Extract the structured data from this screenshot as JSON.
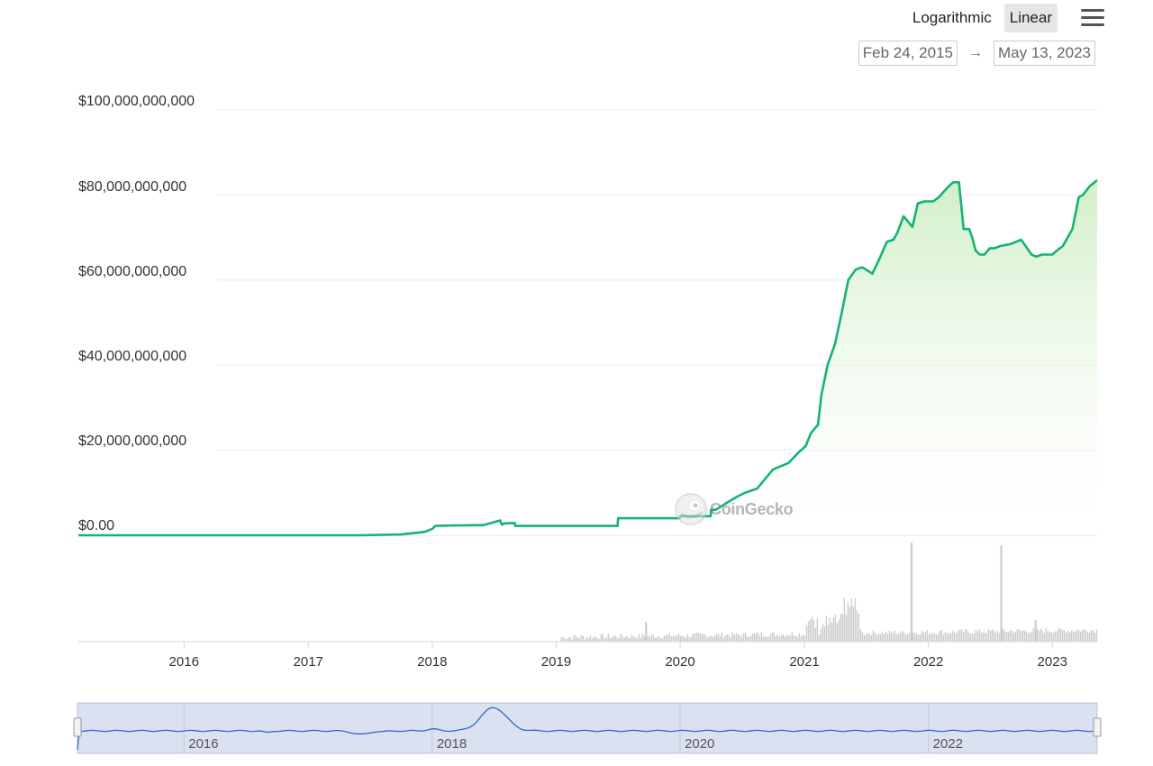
{
  "toolbar": {
    "log_label": "Logarithmic",
    "linear_label": "Linear",
    "active": "Linear"
  },
  "range": {
    "from": "Feb 24, 2015",
    "to": "May 13, 2023"
  },
  "watermark": "CoinGecko",
  "colors": {
    "line": "#15b374",
    "area_top": "#d6efcf",
    "volume": "#cccccc",
    "navigator_line": "#3366cc",
    "navigator_bg": "#dbe1f0"
  },
  "chart_data": {
    "type": "area",
    "title": "",
    "xlabel": "",
    "ylabel": "",
    "ylim": [
      0,
      100000000000
    ],
    "xlim": [
      "2015-02-24",
      "2023-05-13"
    ],
    "y_ticks": [
      "$0.00",
      "$20,000,000,000",
      "$40,000,000,000",
      "$60,000,000,000",
      "$80,000,000,000",
      "$100,000,000,000"
    ],
    "y_tick_values": [
      0,
      20000000000,
      40000000000,
      60000000000,
      80000000000,
      100000000000
    ],
    "x_ticks": [
      "2016",
      "2017",
      "2018",
      "2019",
      "2020",
      "2021",
      "2022",
      "2023"
    ],
    "x_tick_dates": [
      "2016-01-01",
      "2017-01-01",
      "2018-01-01",
      "2019-01-01",
      "2020-01-01",
      "2021-01-01",
      "2022-01-01",
      "2023-01-01"
    ],
    "series": [
      {
        "x": [
          "2015-02-24",
          "2017-06-01",
          "2017-10-01",
          "2017-12-10",
          "2018-01-01",
          "2018-01-10",
          "2018-03-01",
          "2018-06-01",
          "2018-07-20",
          "2018-07-25",
          "2018-08-01",
          "2018-09-01",
          "2018-09-02",
          "2019-01-01",
          "2019-07-01",
          "2019-07-02",
          "2019-09-01",
          "2019-09-02",
          "2019-12-31",
          "2020-01-01",
          "2020-03-31",
          "2020-04-01",
          "2020-04-15",
          "2020-05-15",
          "2020-06-15",
          "2020-07-10",
          "2020-08-15",
          "2020-09-15",
          "2020-10-01",
          "2020-11-15",
          "2020-12-15",
          "2021-01-05",
          "2021-01-20",
          "2021-02-10",
          "2021-02-20",
          "2021-03-10",
          "2021-04-01",
          "2021-04-20",
          "2021-05-10",
          "2021-06-01",
          "2021-06-20",
          "2021-07-01",
          "2021-07-20",
          "2021-08-10",
          "2021-09-01",
          "2021-09-20",
          "2021-10-01",
          "2021-10-20",
          "2021-11-15",
          "2021-12-01",
          "2021-12-20",
          "2022-01-15",
          "2022-02-01",
          "2022-03-01",
          "2022-03-15",
          "2022-04-01",
          "2022-04-15",
          "2022-05-01",
          "2022-05-10",
          "2022-05-20",
          "2022-06-01",
          "2022-06-15",
          "2022-07-01",
          "2022-07-15",
          "2022-08-01",
          "2022-09-01",
          "2022-10-01",
          "2022-11-01",
          "2022-11-15",
          "2022-12-01",
          "2023-01-01",
          "2023-01-15",
          "2023-02-01",
          "2023-02-15",
          "2023-03-01",
          "2023-03-20",
          "2023-04-01",
          "2023-04-20",
          "2023-05-13"
        ],
        "values": [
          0,
          0,
          200000000,
          800000000,
          1500000000,
          2200000000,
          2300000000,
          2400000000,
          3500000000,
          2500000000,
          2800000000,
          2900000000,
          2200000000,
          2200000000,
          2200000000,
          4000000000,
          4000000000,
          4000000000,
          4000000000,
          4500000000,
          4500000000,
          6000000000,
          6000000000,
          7500000000,
          9000000000,
          10000000000,
          11000000000,
          14000000000,
          15500000000,
          17000000000,
          19500000000,
          21000000000,
          24000000000,
          26000000000,
          33000000000,
          40000000000,
          45000000000,
          52000000000,
          60000000000,
          62500000000,
          63000000000,
          62500000000,
          61500000000,
          65000000000,
          69000000000,
          69500000000,
          71000000000,
          75000000000,
          72500000000,
          78000000000,
          78500000000,
          78500000000,
          79500000000,
          82000000000,
          83000000000,
          83000000000,
          72000000000,
          72000000000,
          70000000000,
          67000000000,
          66000000000,
          66000000000,
          67500000000,
          67500000000,
          68000000000,
          68500000000,
          69500000000,
          66000000000,
          65500000000,
          66000000000,
          66000000000,
          67000000000,
          68000000000,
          70000000000,
          72000000000,
          79500000000,
          80000000000,
          82000000000,
          83500000000
        ]
      }
    ],
    "navigator": {
      "x_ticks": [
        "2016",
        "2018",
        "2020",
        "2022"
      ],
      "x_tick_dates": [
        "2016-01-01",
        "2018-01-01",
        "2020-01-01",
        "2022-01-01"
      ]
    }
  }
}
